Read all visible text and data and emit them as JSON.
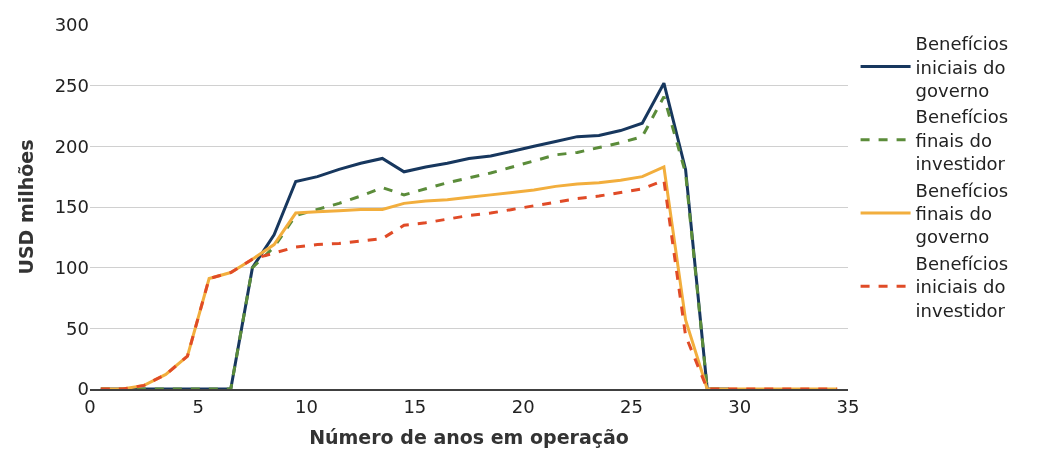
{
  "chart_data": {
    "type": "line",
    "xlabel": "Número de anos em operação",
    "ylabel": "USD milhões",
    "x": [
      0.5,
      1.5,
      2.5,
      3.5,
      4.5,
      5.5,
      6.5,
      7.5,
      8.5,
      9.5,
      10.5,
      11.5,
      12.5,
      13.5,
      14.5,
      15.5,
      16.5,
      17.5,
      18.5,
      19.5,
      20.5,
      21.5,
      22.5,
      23.5,
      24.5,
      25.5,
      26.5,
      27.5,
      28.5,
      29.5,
      30.5,
      31.5,
      32.5,
      33.5,
      34.5
    ],
    "series": [
      {
        "name": "Benefícios iniciais do governo",
        "color": "#17375e",
        "line_style": "solid",
        "values": [
          0,
          0,
          0,
          0,
          0,
          0,
          0,
          100,
          127,
          171,
          175,
          181,
          186,
          190,
          179,
          183,
          186,
          190,
          192,
          196,
          200,
          204,
          208,
          209,
          213,
          219,
          252,
          181,
          0,
          0,
          null,
          null,
          null,
          null,
          null
        ]
      },
      {
        "name": "Benefícios finais do investidor",
        "color": "#5b8c3a",
        "line_style": "dashed",
        "values": [
          0,
          0,
          0,
          0,
          0,
          0,
          0,
          100,
          117,
          143,
          148,
          153,
          159,
          166,
          160,
          165,
          170,
          174,
          178,
          183,
          188,
          193,
          195,
          199,
          203,
          208,
          241,
          178,
          0,
          0,
          null,
          null,
          null,
          null,
          null
        ]
      },
      {
        "name": "Benefícios finais do governo",
        "color": "#f2ae3d",
        "line_style": "solid",
        "values": [
          0,
          0,
          3,
          12,
          27,
          91,
          96,
          107,
          119,
          145,
          146,
          147,
          148,
          148,
          153,
          155,
          156,
          158,
          160,
          162,
          164,
          167,
          169,
          170,
          172,
          175,
          183,
          57,
          0,
          0,
          0,
          0,
          0,
          0,
          0
        ]
      },
      {
        "name": "Benefícios iniciais do investidor",
        "color": "#e04b27",
        "line_style": "dashed",
        "values": [
          0,
          0,
          3,
          12,
          27,
          91,
          96,
          107,
          112,
          117,
          119,
          120,
          122,
          124,
          135,
          137,
          140,
          143,
          145,
          148,
          151,
          154,
          157,
          159,
          162,
          165,
          172,
          44,
          0,
          0,
          0,
          0,
          0,
          0,
          0
        ]
      }
    ],
    "xlim": [
      0,
      35
    ],
    "xticks": [
      0,
      5,
      10,
      15,
      20,
      25,
      30,
      35
    ],
    "ylim": [
      0,
      300
    ],
    "yticks": [
      0,
      50,
      100,
      150,
      200,
      250,
      300
    ],
    "grid": "y",
    "legend": "right",
    "marker": "none"
  }
}
